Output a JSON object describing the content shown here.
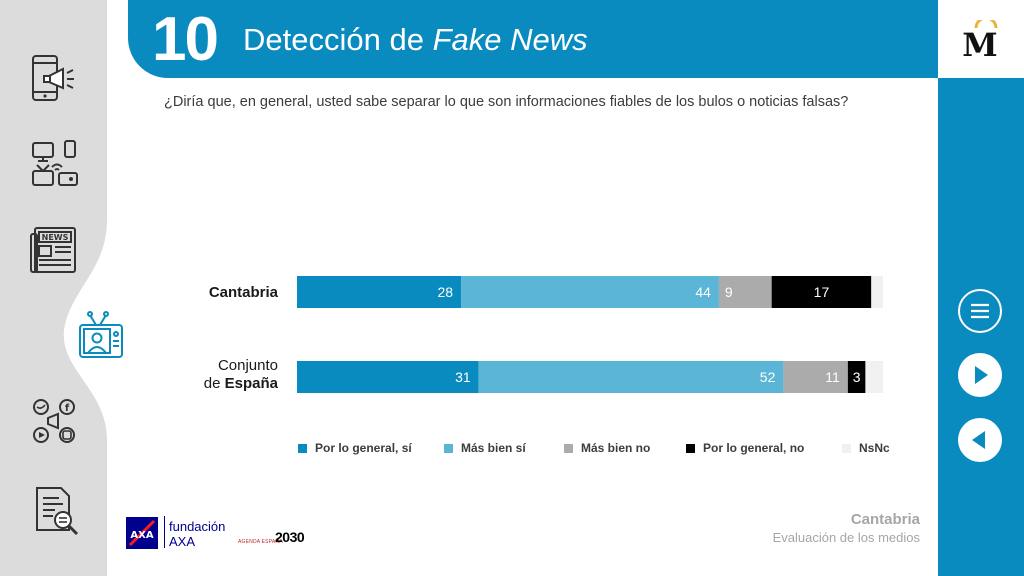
{
  "header": {
    "section_number": "10",
    "title_prefix": "Detección de ",
    "title_emphasis": "Fake News",
    "brand_logo_letter": "M"
  },
  "question": "¿Diría que, en general, usted sabe separar lo que son informaciones fiables de los bulos o noticias falsas?",
  "sidebar": {
    "items": [
      {
        "icon": "mobile-megaphone-icon"
      },
      {
        "icon": "devices-icon"
      },
      {
        "icon": "newspaper-icon"
      },
      {
        "icon": "tv-presenter-icon",
        "active": true
      },
      {
        "icon": "social-media-icon"
      },
      {
        "icon": "document-search-icon"
      }
    ]
  },
  "nav": {
    "menu": "menu-icon",
    "next": "play-right-icon",
    "prev": "play-left-icon"
  },
  "colors": {
    "primary": "#0a8bc0",
    "light_blue": "#5ab5d6",
    "grey": "#ababab",
    "black": "#000000",
    "nsnc": "#f0f0f0"
  },
  "chart_data": {
    "type": "bar",
    "orientation": "horizontal",
    "stacked": true,
    "normalized_to": 100,
    "categories": [
      {
        "line1": "Cantabria",
        "line1_bold": true,
        "line2": "",
        "line2_bold": false
      },
      {
        "line1": "Conjunto",
        "line1_bold": false,
        "line2_prefix": "de ",
        "line2": "España",
        "line2_bold": true
      }
    ],
    "series": [
      {
        "name": "Por lo general, sí",
        "color": "#0a8bc0",
        "values": [
          28,
          31
        ]
      },
      {
        "name": "Más bien sí",
        "color": "#5ab5d6",
        "values": [
          44,
          52
        ]
      },
      {
        "name": "Más bien no",
        "color": "#ababab",
        "values": [
          9,
          11
        ]
      },
      {
        "name": "Por lo general, no",
        "color": "#000000",
        "values": [
          17,
          3
        ]
      },
      {
        "name": "NsNc",
        "color": "#f0f0f0",
        "values": [
          2,
          3
        ]
      }
    ],
    "data_labels": [
      [
        "28",
        "44",
        "9",
        "17",
        ""
      ],
      [
        "31",
        "52",
        "11",
        "3",
        ""
      ]
    ],
    "legend_position": "bottom"
  },
  "footer": {
    "region": "Cantabria",
    "report": "Evaluación de los medios",
    "sponsor_line1": "fundación",
    "sponsor_line2": "AXA",
    "sponsor_logo_text": "AXA",
    "agenda_small": "AGENDA ESPAÑA",
    "agenda_year": "2030"
  }
}
